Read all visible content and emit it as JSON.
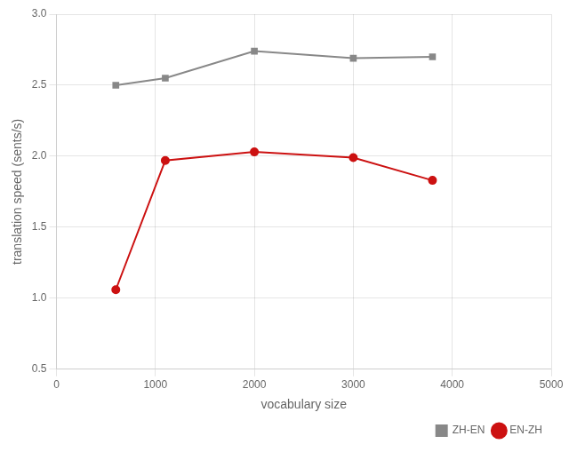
{
  "chart_data": {
    "type": "line",
    "x": [
      600,
      1100,
      2000,
      3000,
      3800
    ],
    "series": [
      {
        "name": "ZH-EN",
        "color": "#888888",
        "marker": "square",
        "values": [
          2.5,
          2.55,
          2.74,
          2.69,
          2.7
        ]
      },
      {
        "name": "EN-ZH",
        "color": "#cc1111",
        "marker": "circle",
        "values": [
          1.06,
          1.97,
          2.03,
          1.99,
          1.83
        ]
      }
    ],
    "xlabel": "vocabulary size",
    "ylabel": "translation speed (sents/s)",
    "xlim": [
      0,
      5000
    ],
    "ylim": [
      0.5,
      3.0
    ],
    "xticks": [
      0,
      1000,
      2000,
      3000,
      4000,
      5000
    ],
    "yticks": [
      0.5,
      {
        "value": 1.0,
        "label": "1.0"
      },
      1.5,
      {
        "value": 2.0,
        "label": "2.0"
      },
      2.5,
      {
        "value": 3.0,
        "label": "3.0"
      }
    ],
    "grid": true,
    "legend": "lower right"
  }
}
